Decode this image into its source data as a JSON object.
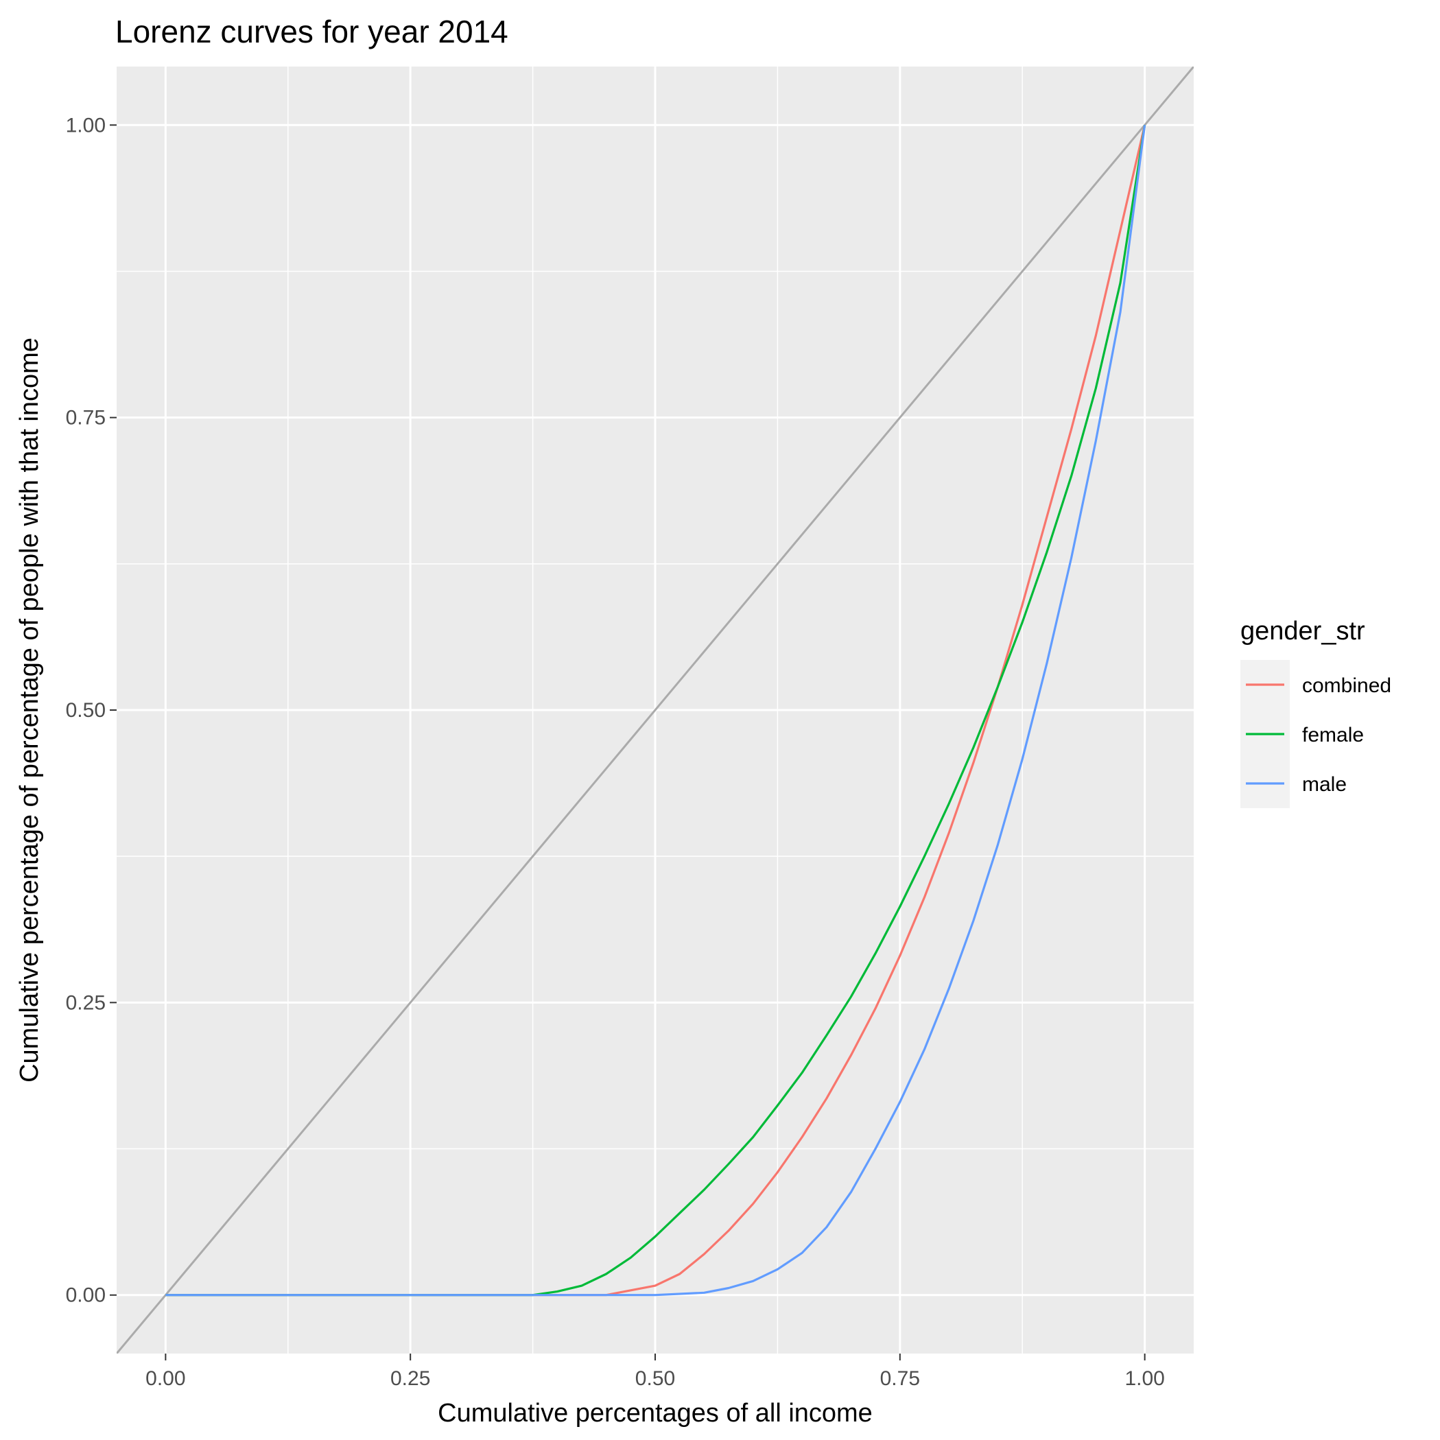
{
  "chart_data": {
    "type": "line",
    "title": "Lorenz curves for year 2014",
    "xlabel": "Cumulative percentages of all income",
    "ylabel": "Cumulative percentage of percentage of people with that income",
    "xlim": [
      -0.05,
      1.05
    ],
    "ylim": [
      -0.05,
      1.05
    ],
    "x_ticks": [
      0.0,
      0.25,
      0.5,
      0.75,
      1.0
    ],
    "x_tick_labels": [
      "0.00",
      "0.25",
      "0.50",
      "0.75",
      "1.00"
    ],
    "y_ticks": [
      0.0,
      0.25,
      0.5,
      0.75,
      1.0
    ],
    "y_tick_labels": [
      "0.00",
      "0.25",
      "0.50",
      "0.75",
      "1.00"
    ],
    "grid": true,
    "legend": {
      "title": "gender_str",
      "position": "right"
    },
    "reference_line": {
      "x": [
        -0.05,
        1.05
      ],
      "y": [
        -0.05,
        1.05
      ],
      "color": "#ababab"
    },
    "series": [
      {
        "name": "combined",
        "color": "#F8766D",
        "x": [
          0.0,
          0.375,
          0.45,
          0.5,
          0.525,
          0.55,
          0.575,
          0.6,
          0.625,
          0.65,
          0.675,
          0.7,
          0.725,
          0.75,
          0.775,
          0.8,
          0.825,
          0.85,
          0.875,
          0.9,
          0.925,
          0.95,
          0.975,
          1.0
        ],
        "y": [
          0.0,
          0.0,
          0.0,
          0.008,
          0.018,
          0.035,
          0.055,
          0.078,
          0.105,
          0.135,
          0.168,
          0.205,
          0.245,
          0.29,
          0.34,
          0.395,
          0.455,
          0.52,
          0.59,
          0.665,
          0.74,
          0.82,
          0.91,
          1.0
        ]
      },
      {
        "name": "female",
        "color": "#00BA38",
        "x": [
          0.0,
          0.375,
          0.4,
          0.425,
          0.45,
          0.475,
          0.5,
          0.525,
          0.55,
          0.575,
          0.6,
          0.625,
          0.65,
          0.675,
          0.7,
          0.725,
          0.75,
          0.775,
          0.8,
          0.825,
          0.85,
          0.875,
          0.9,
          0.925,
          0.95,
          0.975,
          1.0
        ],
        "y": [
          0.0,
          0.0,
          0.003,
          0.008,
          0.018,
          0.032,
          0.05,
          0.07,
          0.09,
          0.112,
          0.135,
          0.162,
          0.19,
          0.222,
          0.255,
          0.292,
          0.332,
          0.375,
          0.42,
          0.468,
          0.52,
          0.575,
          0.635,
          0.7,
          0.775,
          0.865,
          1.0
        ]
      },
      {
        "name": "male",
        "color": "#619CFF",
        "x": [
          0.0,
          0.5,
          0.55,
          0.575,
          0.6,
          0.625,
          0.65,
          0.675,
          0.7,
          0.725,
          0.75,
          0.775,
          0.8,
          0.825,
          0.85,
          0.875,
          0.9,
          0.925,
          0.95,
          0.975,
          1.0
        ],
        "y": [
          0.0,
          0.0,
          0.002,
          0.006,
          0.012,
          0.022,
          0.036,
          0.058,
          0.088,
          0.125,
          0.165,
          0.21,
          0.262,
          0.32,
          0.385,
          0.458,
          0.54,
          0.63,
          0.73,
          0.84,
          1.0
        ]
      }
    ]
  }
}
